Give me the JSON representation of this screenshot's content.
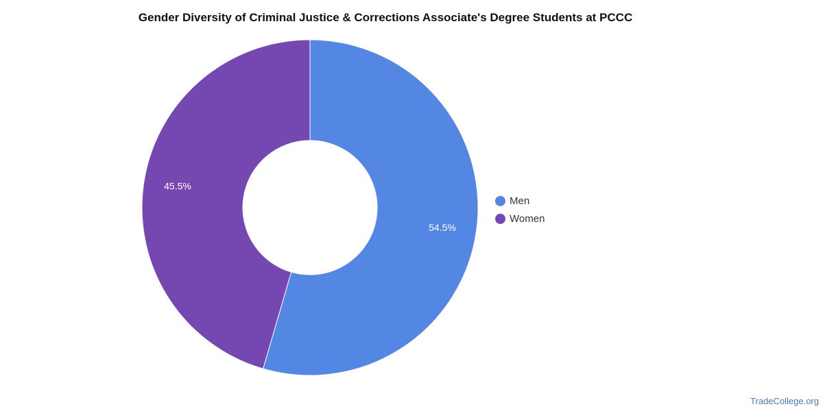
{
  "chart_data": {
    "type": "pie",
    "title": "Gender Diversity of Criminal Justice & Corrections Associate's Degree Students at PCCC",
    "donut": true,
    "legend_position": "right",
    "slices": [
      {
        "label": "Men",
        "value": 54.5,
        "value_label": "54.5%",
        "color": "#5486e3"
      },
      {
        "label": "Women",
        "value": 45.5,
        "value_label": "45.5%",
        "color": "#7448b0"
      }
    ]
  },
  "watermark": "TradeCollege.org"
}
